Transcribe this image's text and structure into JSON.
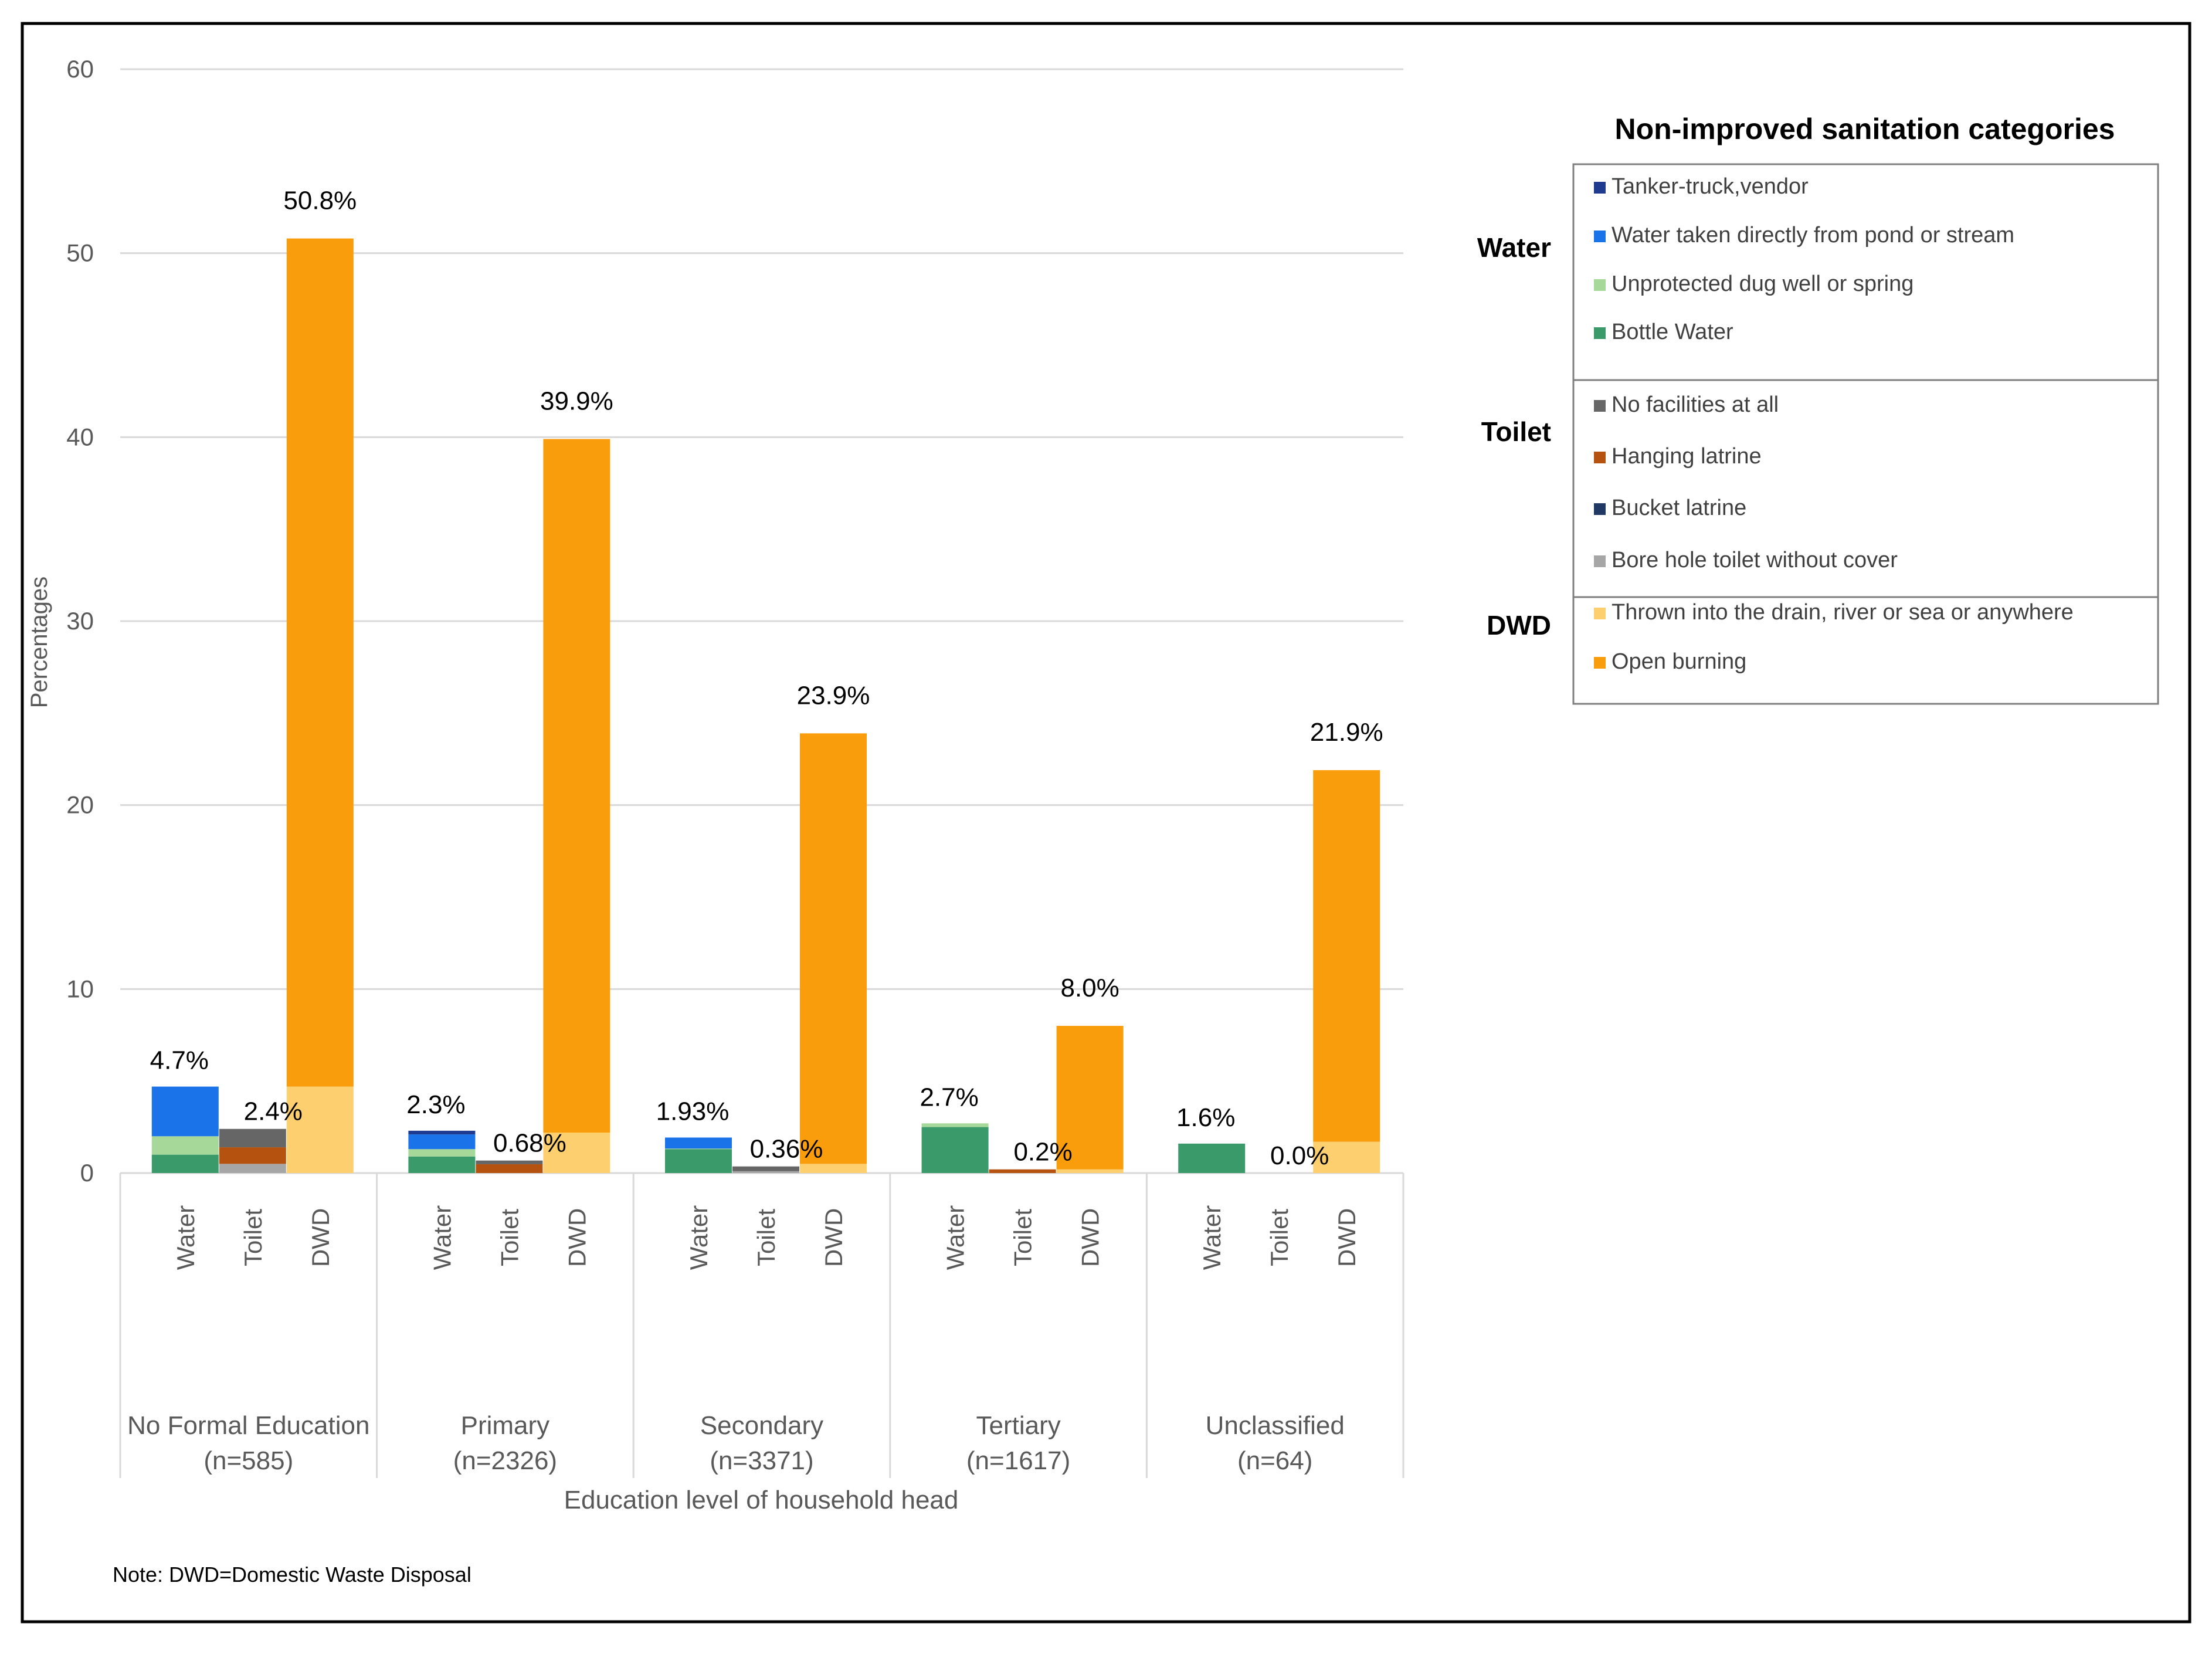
{
  "chart_data": {
    "type": "bar",
    "stacked": true,
    "ylabel": "Percentages",
    "xlabel": "Education level of household head",
    "ylim": [
      0,
      60
    ],
    "yticks": [
      0,
      10,
      20,
      30,
      40,
      50,
      60
    ],
    "grid": true,
    "note": "Note: DWD=Domestic Waste Disposal",
    "groups": [
      {
        "label_line1": "No Formal Education",
        "label_line2": "(n=585)"
      },
      {
        "label_line1": "Primary",
        "label_line2": "(n=2326)"
      },
      {
        "label_line1": "Secondary",
        "label_line2": "(n=3371)"
      },
      {
        "label_line1": "Tertiary",
        "label_line2": "(n=1617)"
      },
      {
        "label_line1": "Unclassified",
        "label_line2": "(n=64)"
      }
    ],
    "bar_categories": [
      "Water",
      "Toilet",
      "DWD"
    ],
    "series": [
      {
        "name": "Tanker-truck,vendor",
        "group": "Water",
        "color": "#1f3b8f",
        "values": [
          0,
          0.2,
          0,
          0,
          0
        ]
      },
      {
        "name": "Water taken directly from pond or stream",
        "group": "Water",
        "color": "#1a73e8",
        "values": [
          2.7,
          0.8,
          0.6,
          0,
          0
        ]
      },
      {
        "name": "Unprotected dug well or spring",
        "group": "Water",
        "color": "#a6d89a",
        "values": [
          1.0,
          0.4,
          0.03,
          0.2,
          0
        ]
      },
      {
        "name": "Bottle Water",
        "group": "Water",
        "color": "#3a9a6a",
        "values": [
          1.0,
          0.9,
          1.3,
          2.5,
          1.6
        ]
      },
      {
        "name": "No facilities at all",
        "group": "Toilet",
        "color": "#666666",
        "values": [
          1.0,
          0.2,
          0.26,
          0,
          0
        ]
      },
      {
        "name": "Hanging latrine",
        "group": "Toilet",
        "color": "#b5520f",
        "values": [
          0.9,
          0.48,
          0,
          0.2,
          0
        ]
      },
      {
        "name": "Bucket latrine",
        "group": "Toilet",
        "color": "#203864",
        "values": [
          0,
          0,
          0,
          0,
          0
        ]
      },
      {
        "name": "Bore hole toilet without cover",
        "group": "Toilet",
        "color": "#a6a6a6",
        "values": [
          0.5,
          0,
          0.1,
          0,
          0
        ]
      },
      {
        "name": "Open burning",
        "group": "DWD",
        "color": "#f99d0c",
        "values": [
          46.1,
          37.7,
          23.4,
          7.8,
          20.2
        ]
      },
      {
        "name": "Thrown into the drain, river or sea or anywhere",
        "group": "DWD",
        "color": "#fdcf6f",
        "values": [
          4.7,
          2.2,
          0.5,
          0.2,
          1.7
        ]
      }
    ],
    "totals": {
      "Water": [
        4.7,
        2.3,
        1.93,
        2.7,
        1.6
      ],
      "Toilet": [
        2.4,
        0.68,
        0.36,
        0.2,
        0.0
      ],
      "DWD": [
        50.8,
        39.9,
        23.9,
        8.0,
        21.9
      ]
    },
    "total_labels": {
      "Water": [
        "4.7%",
        "2.3%",
        "1.93%",
        "2.7%",
        "1.6%"
      ],
      "Toilet": [
        "2.4%",
        "0.68%",
        "0.36%",
        "0.2%",
        "0.0%"
      ],
      "DWD": [
        "50.8%",
        "39.9%",
        "23.9%",
        "8.0%",
        "21.9%"
      ]
    },
    "legend": {
      "title": "Non-improved sanitation categories",
      "placement": "right",
      "sections": [
        {
          "label": "Water",
          "items": [
            "Tanker-truck,vendor",
            "Water taken directly from pond or stream",
            "Unprotected dug well or spring",
            "Bottle Water"
          ]
        },
        {
          "label": "Toilet",
          "items": [
            "No facilities at all",
            "Hanging latrine",
            "Bucket latrine",
            "Bore hole toilet without cover"
          ]
        },
        {
          "label": "DWD",
          "items": [
            "Thrown into the drain, river or sea or anywhere",
            "Open burning"
          ]
        }
      ]
    }
  }
}
